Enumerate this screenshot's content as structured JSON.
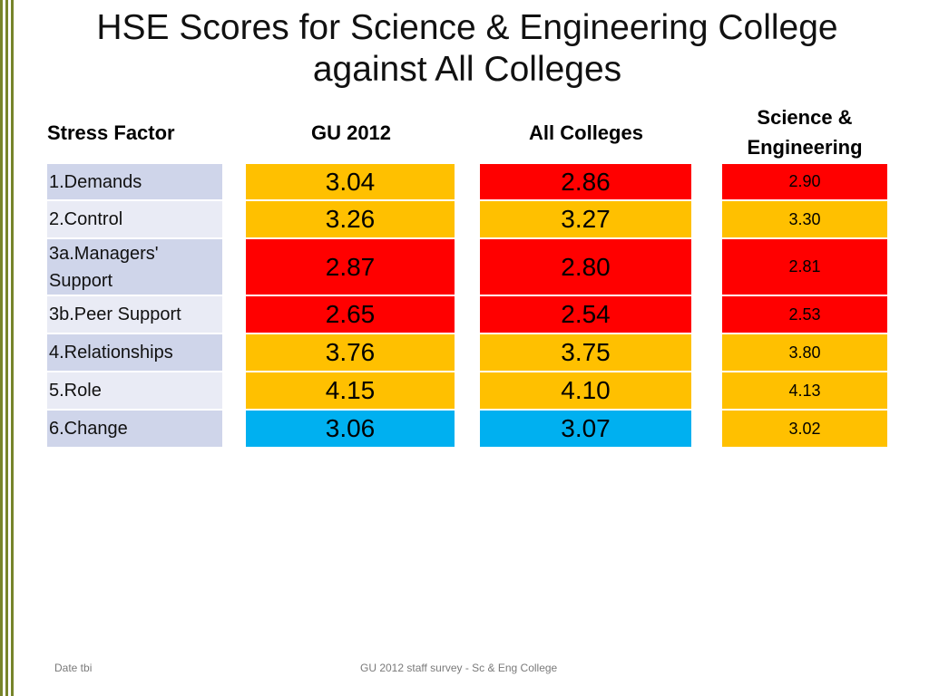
{
  "slide": {
    "title_line1": "HSE Scores for Science & Engineering College",
    "title_line2": "against All Colleges"
  },
  "table": {
    "headers": {
      "factor": "Stress Factor",
      "gu": "GU 2012",
      "all": "All Colleges",
      "se_line1": "Science &",
      "se_line2": "Engineering"
    },
    "rows": [
      {
        "factor_line1": "1.Demands",
        "factor_line2": "",
        "gu": "3.04",
        "all": "2.86",
        "se": "2.90"
      },
      {
        "factor_line1": "2.Control",
        "factor_line2": "",
        "gu": "3.26",
        "all": "3.27",
        "se": "3.30"
      },
      {
        "factor_line1": "3a.Managers'",
        "factor_line2": "Support",
        "gu": "2.87",
        "all": "2.80",
        "se": "2.81"
      },
      {
        "factor_line1": "3b.Peer Support",
        "factor_line2": "",
        "gu": "2.65",
        "all": "2.54",
        "se": "2.53"
      },
      {
        "factor_line1": "4.Relationships",
        "factor_line2": "",
        "gu": "3.76",
        "all": "3.75",
        "se": "3.80"
      },
      {
        "factor_line1": "5.Role",
        "factor_line2": "",
        "gu": "4.15",
        "all": "4.10",
        "se": "4.13"
      },
      {
        "factor_line1": "6.Change",
        "factor_line2": "",
        "gu": "3.06",
        "all": "3.07",
        "se": "3.02"
      }
    ],
    "colors": {
      "red": "#ff0000",
      "amber": "#ffc000",
      "blue": "#00b0f0",
      "factor_band_dark": "#cfd5ea",
      "factor_band_light": "#e9ebf5"
    }
  },
  "footer": {
    "date": "Date tbi",
    "center": "GU 2012 staff survey -  Sc & Eng College"
  },
  "theme": {
    "accent_bar": "#77842a"
  }
}
